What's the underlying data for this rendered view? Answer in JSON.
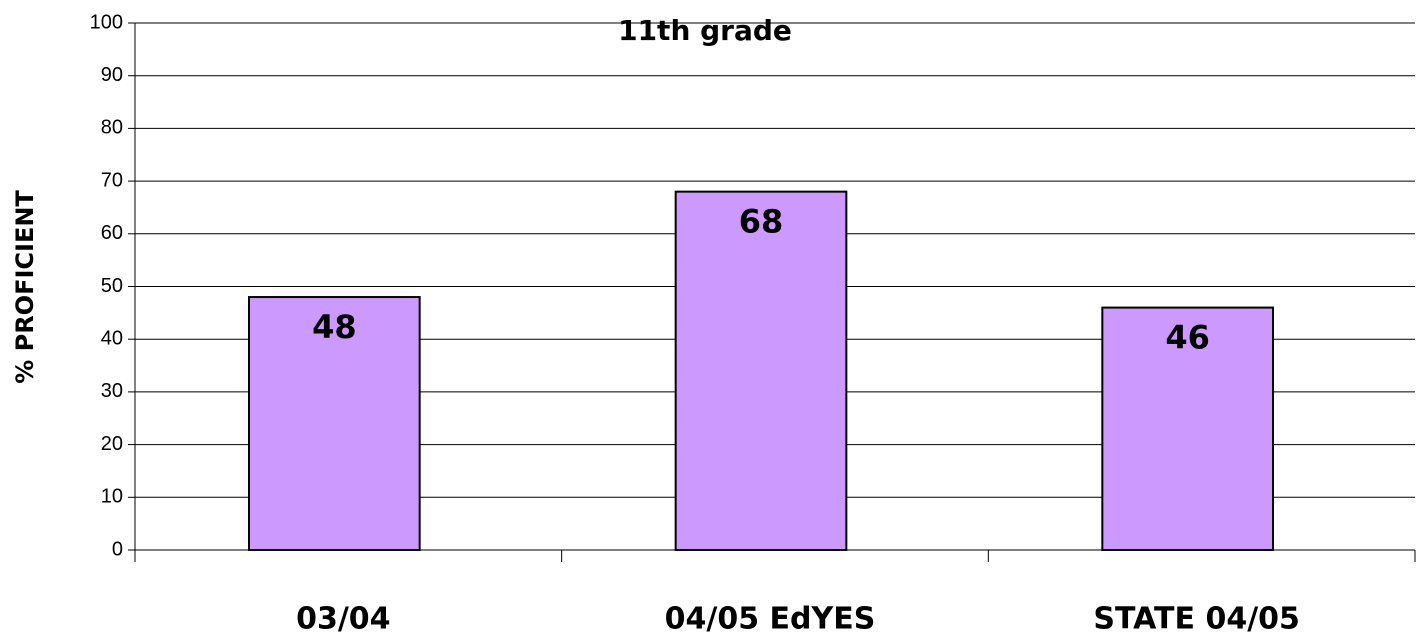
{
  "chart_data": {
    "type": "bar",
    "title": "11th grade",
    "y_label": "% PROFICIENT",
    "categories": [
      "03/04",
      "04/05 EdYES",
      "STATE 04/05"
    ],
    "values": [
      48,
      68,
      46
    ],
    "color": "#cc99ff",
    "ylim": [
      0,
      100
    ],
    "yticks": [
      0,
      10,
      20,
      30,
      40,
      50,
      60,
      70,
      80,
      90,
      100
    ],
    "grid": true
  }
}
